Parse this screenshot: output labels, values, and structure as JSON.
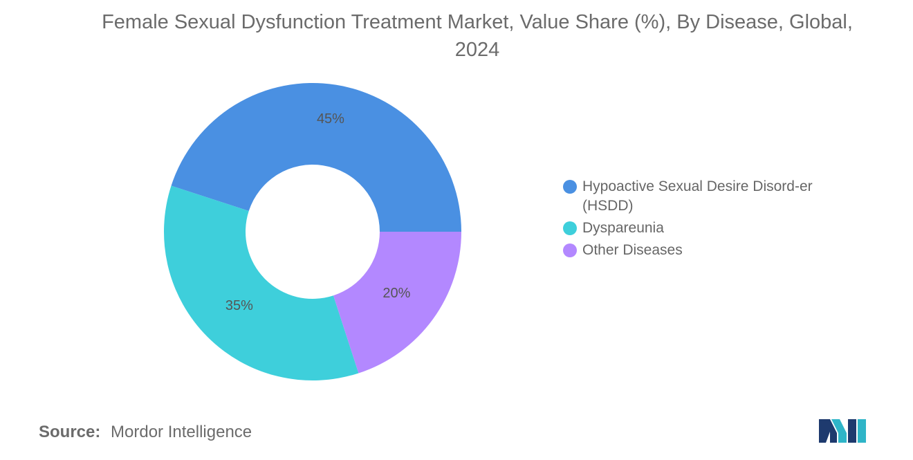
{
  "chart_data": {
    "type": "pie",
    "title": "Female Sexual Dysfunction Treatment Market, Value Share (%), By Disease, Global, 2024",
    "categories": [
      "Hypoactive Sexual Desire Disorder (HSDD)",
      "Dyspareunia",
      "Other Diseases"
    ],
    "values": [
      45,
      35,
      20
    ],
    "value_labels": [
      "45%",
      "35%",
      "20%"
    ],
    "colors": [
      "#4A90E2",
      "#3ECFDB",
      "#B388FF"
    ],
    "legend_labels": [
      "Hypoactive Sexual Desire Disord-er (HSDD)",
      "Dyspareunia",
      "Other Diseases"
    ],
    "legend_position": "right",
    "donut": true
  },
  "source": {
    "label": "Source:",
    "value": "Mordor Intelligence"
  },
  "logo": {
    "icon": "mordor-intelligence-logo",
    "colors": [
      "#1E3A6E",
      "#2FB5C8"
    ]
  }
}
